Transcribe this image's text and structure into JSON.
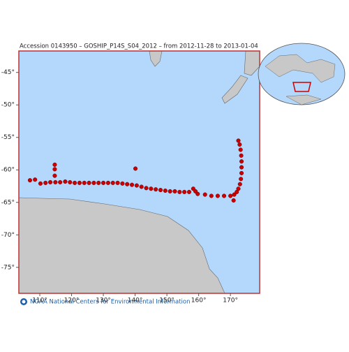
{
  "chart_data": {
    "type": "scatter",
    "title": "Accession 0143950 – GOSHIP_P14S_S04_2012 – from 2012-11-28 to 2013-01-04",
    "footer": "NOAA National Centers for Environmental Information",
    "xlim": [
      103.4,
      179.2
    ],
    "ylim": [
      -79,
      -41.7
    ],
    "xticks": [
      {
        "value": 110,
        "label": "110°"
      },
      {
        "value": 120,
        "label": "120°"
      },
      {
        "value": 130,
        "label": "130°"
      },
      {
        "value": 140,
        "label": "140°"
      },
      {
        "value": 150,
        "label": "150°"
      },
      {
        "value": 160,
        "label": "160°"
      },
      {
        "value": 170,
        "label": "170°"
      }
    ],
    "yticks": [
      {
        "value": -45,
        "label": "-45°"
      },
      {
        "value": -50,
        "label": "-50°"
      },
      {
        "value": -55,
        "label": "-55°"
      },
      {
        "value": -60,
        "label": "-60°"
      },
      {
        "value": -65,
        "label": "-65°"
      },
      {
        "value": -70,
        "label": "-70°"
      },
      {
        "value": -75,
        "label": "-75°"
      }
    ],
    "color": "#cc0000",
    "x": [
      106.9,
      108.5,
      110.2,
      111.8,
      113.3,
      114.7,
      114.7,
      114.7,
      114.9,
      116.4,
      118.0,
      119.5,
      121.0,
      122.5,
      124.0,
      125.5,
      127.0,
      128.5,
      130.0,
      131.5,
      133.0,
      134.5,
      136.0,
      137.5,
      139.0,
      140.1,
      140.5,
      142.0,
      143.5,
      145.0,
      146.5,
      148.0,
      149.5,
      151.0,
      152.5,
      154.0,
      155.5,
      157.0,
      158.3,
      159.0,
      159.7,
      162.0,
      164.0,
      166.0,
      168.0,
      170.0,
      171.0,
      171.2,
      172.0,
      172.5,
      173.0,
      173.3,
      173.5,
      173.5,
      173.5,
      173.4,
      173.2,
      172.9,
      172.5
    ],
    "values": [
      -61.6,
      -61.5,
      -62.1,
      -62.0,
      -61.9,
      -59.2,
      -59.9,
      -60.9,
      -61.9,
      -61.9,
      -61.8,
      -61.9,
      -62.0,
      -62.0,
      -62.0,
      -62.0,
      -62.0,
      -62.0,
      -62.0,
      -62.0,
      -62.0,
      -62.0,
      -62.1,
      -62.2,
      -62.3,
      -59.8,
      -62.4,
      -62.6,
      -62.8,
      -62.9,
      -63.0,
      -63.1,
      -63.2,
      -63.3,
      -63.3,
      -63.4,
      -63.4,
      -63.4,
      -62.9,
      -63.3,
      -63.7,
      -63.8,
      -64.0,
      -64.0,
      -64.0,
      -64.0,
      -64.7,
      -63.8,
      -63.4,
      -62.9,
      -62.2,
      -61.4,
      -60.5,
      -59.6,
      -58.7,
      -57.8,
      -56.9,
      -56.1,
      -55.5
    ]
  }
}
